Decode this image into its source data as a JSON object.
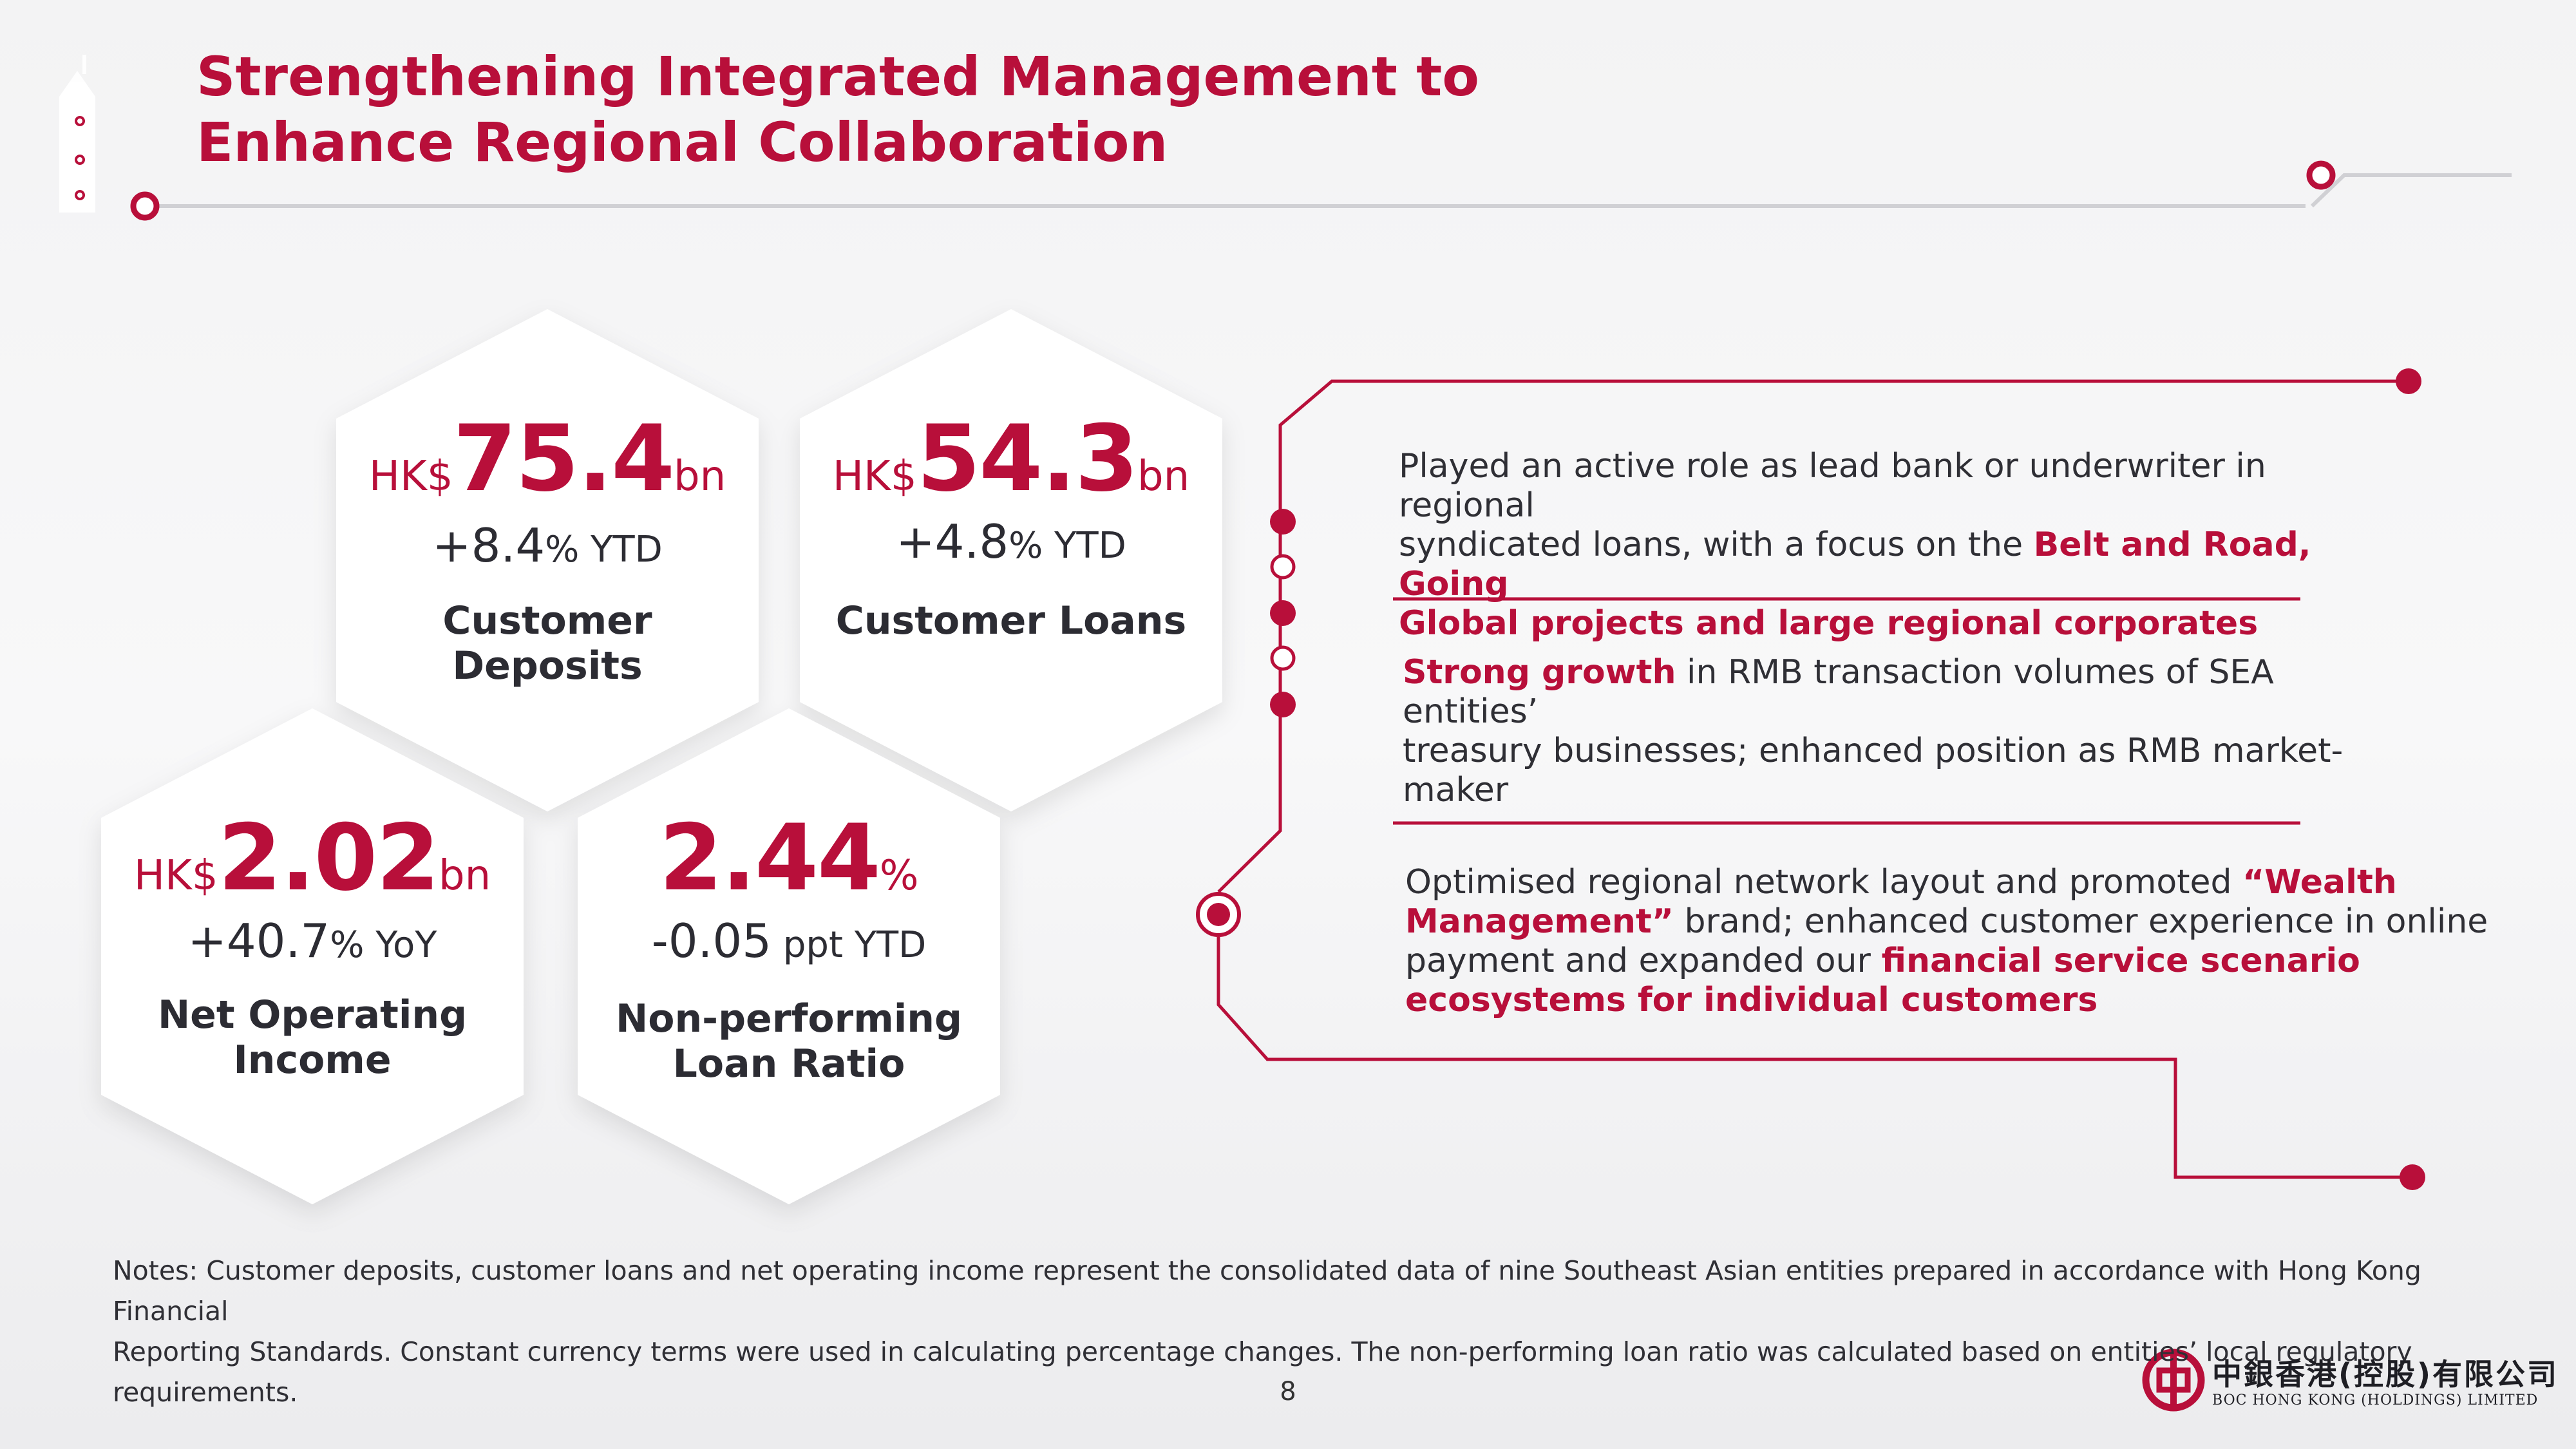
{
  "title_line1": "Strengthening Integrated Management to",
  "title_line2": "Enhance Regional Collaboration",
  "metrics": {
    "deposits": {
      "prefix": "HK$",
      "value": "75.4",
      "suffix": "bn",
      "change_value": "+8.4",
      "change_unit": "% YTD",
      "label": "Customer Deposits"
    },
    "loans": {
      "prefix": "HK$",
      "value": "54.3",
      "suffix": "bn",
      "change_value": "+4.8",
      "change_unit": "% YTD",
      "label": "Customer Loans"
    },
    "income": {
      "prefix": "HK$",
      "value": "2.02",
      "suffix": "bn",
      "change_value": "+40.7",
      "change_unit": "% YoY",
      "label_line1": "Net Operating",
      "label_line2": "Income"
    },
    "npl": {
      "value": "2.44",
      "suffix": "%",
      "change_value": "-0.05",
      "change_unit": " ppt YTD",
      "label_line1": "Non-performing",
      "label_line2": "Loan Ratio"
    }
  },
  "points": [
    {
      "l1": "Played an active role as lead bank or underwriter in regional",
      "l2_a": "syndicated loans, with a focus on the ",
      "l2_b": "Belt and Road, Going",
      "l3": "Global projects and large regional corporates"
    },
    {
      "l1_a": "Strong growth",
      "l1_b": " in RMB transaction volumes of SEA entities’",
      "l2": "treasury businesses; enhanced position as RMB market-",
      "l3": "maker"
    },
    {
      "l1_a": "Optimised regional network layout and promoted ",
      "l1_b": "“Wealth",
      "l2_a": "Management”",
      "l2_b": " brand; enhanced customer experience in online",
      "l3_a": "payment and expanded our ",
      "l3_b": "financial service scenario",
      "l4": "ecosystems for individual customers"
    }
  ],
  "notes_line1": "Notes: Customer deposits, customer loans and net operating income represent the consolidated data of nine Southeast Asian entities prepared in accordance with Hong Kong Financial",
  "notes_line2": "Reporting Standards. Constant currency terms were used in calculating percentage changes. The non-performing loan ratio was calculated based on entities’ local regulatory requirements.",
  "page_number": "8",
  "logo_cn": "中銀香港(控股)有限公司",
  "logo_en": "BOC HONG KONG (HOLDINGS) LIMITED",
  "colors": {
    "brand_red": "#b80f3a",
    "text": "#2f2f35",
    "line": "#c8c8cc"
  }
}
